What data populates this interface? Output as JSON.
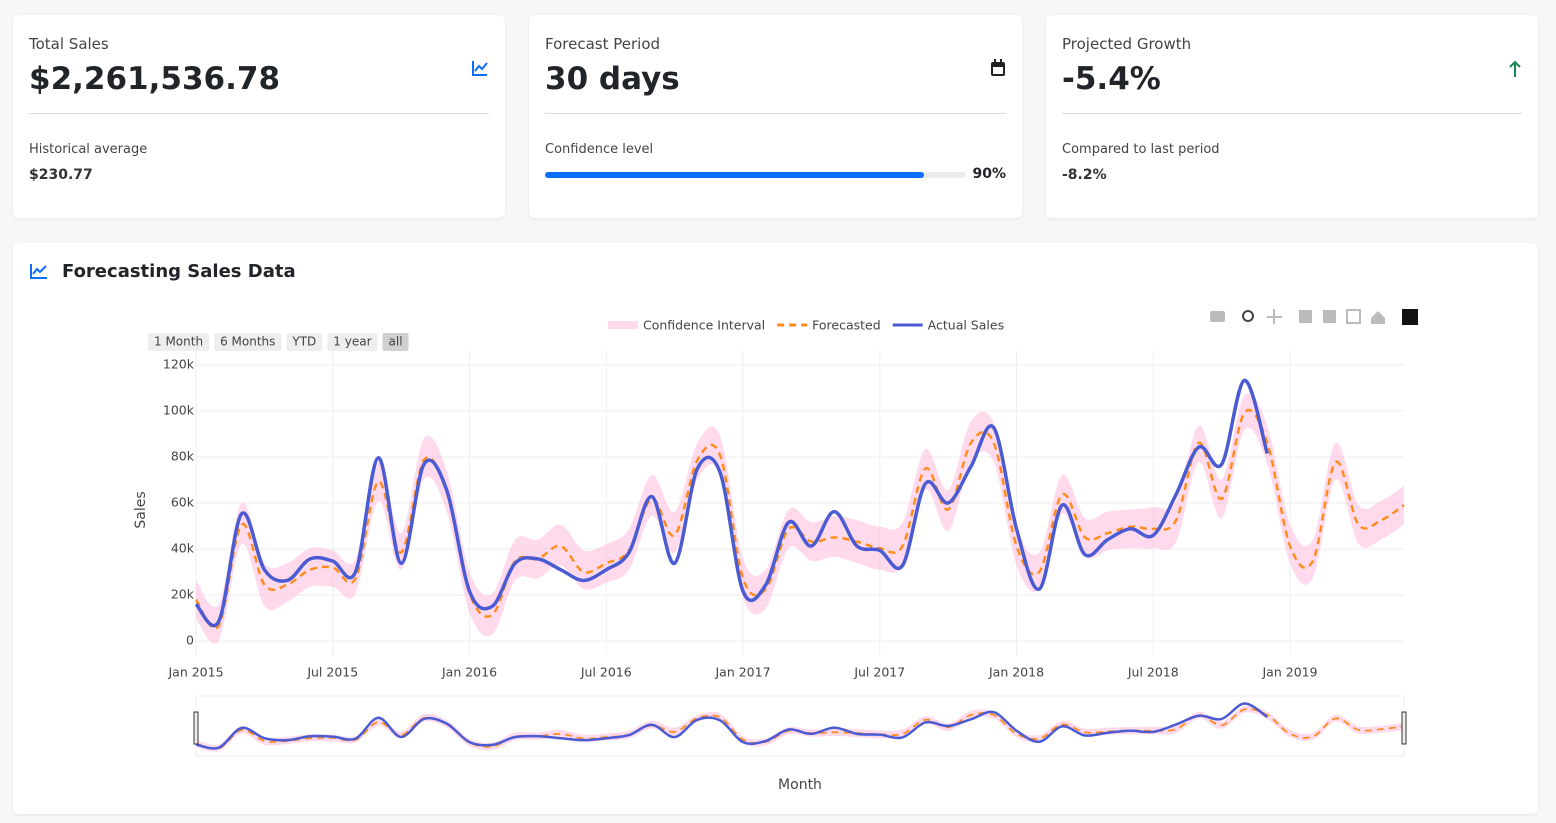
{
  "cards": [
    {
      "title": "Total Sales",
      "value": "$2,261,536.78",
      "subtitle": "Historical average",
      "subvalue": "$230.77"
    },
    {
      "title": "Forecast Period",
      "value": "30 days",
      "subtitle": "Confidence level",
      "progress": {
        "value": 90,
        "label": "90%"
      }
    },
    {
      "title": "Projected Growth",
      "value": "-5.4%",
      "subtitle": "Compared to last period",
      "subvalue": "-8.2%"
    }
  ],
  "panel_title": "Forecasting Sales Data",
  "chart_data": {
    "type": "line",
    "x_label": "Month",
    "y_label": "Sales",
    "range_buttons": [
      "1 Month",
      "6 Months",
      "YTD",
      "1 year",
      "all"
    ],
    "x": [
      "2015-01",
      "2015-02",
      "2015-03",
      "2015-04",
      "2015-05",
      "2015-06",
      "2015-07",
      "2015-08",
      "2015-09",
      "2015-10",
      "2015-11",
      "2015-12",
      "2016-01",
      "2016-02",
      "2016-03",
      "2016-04",
      "2016-05",
      "2016-06",
      "2016-07",
      "2016-08",
      "2016-09",
      "2016-10",
      "2016-11",
      "2016-12",
      "2017-01",
      "2017-02",
      "2017-03",
      "2017-04",
      "2017-05",
      "2017-06",
      "2017-07",
      "2017-08",
      "2017-09",
      "2017-10",
      "2017-11",
      "2017-12",
      "2018-01",
      "2018-02",
      "2018-03",
      "2018-04",
      "2018-05",
      "2018-06",
      "2018-07",
      "2018-08",
      "2018-09",
      "2018-10",
      "2018-11",
      "2018-12",
      "2019-01",
      "2019-02",
      "2019-03",
      "2019-04",
      "2019-05",
      "2019-06"
    ],
    "series": [
      {
        "name": "Confidence Interval",
        "color": "rgba(255,182,217,0.5)",
        "upper": [
          24000,
          13000,
          60000,
          32000,
          32000,
          39000,
          38000,
          34000,
          79000,
          46000,
          90000,
          75000,
          28000,
          18000,
          43000,
          43000,
          50000,
          38000,
          41000,
          48000,
          73000,
          56000,
          88000,
          91000,
          34000,
          29000,
          57000,
          51000,
          54000,
          52000,
          49000,
          51000,
          85000,
          66000,
          98000,
          97000,
          49000,
          37000,
          73000,
          53000,
          56000,
          57000,
          58000,
          61000,
          96000,
          71000,
          110000,
          96000,
          50000,
          43000,
          88000,
          59000,
          61000,
          68000
        ],
        "lower": [
          6000,
          -4000,
          41000,
          12000,
          14000,
          21000,
          21000,
          18000,
          61000,
          29000,
          71000,
          56000,
          9000,
          -1000,
          24000,
          25000,
          31000,
          20000,
          23000,
          29000,
          54000,
          37000,
          71000,
          73000,
          16000,
          11000,
          39000,
          33000,
          35000,
          32000,
          29000,
          31000,
          66000,
          47000,
          79000,
          79000,
          31000,
          20000,
          55000,
          35000,
          38000,
          39000,
          39000,
          42000,
          79000,
          53000,
          94000,
          78000,
          32000,
          25000,
          71000,
          41000,
          43000,
          50000
        ]
      },
      {
        "name": "Forecasted",
        "color": "#ff8c1a",
        "values": [
          15000,
          3000,
          50000,
          22000,
          22000,
          29000,
          30000,
          25000,
          70000,
          37000,
          80000,
          65000,
          18000,
          8000,
          33000,
          34000,
          40000,
          28000,
          32000,
          38000,
          62000,
          45000,
          80000,
          82000,
          25000,
          20000,
          48000,
          42000,
          44000,
          42000,
          39000,
          40000,
          76000,
          57000,
          88000,
          88000,
          40000,
          28000,
          64000,
          44000,
          46000,
          49000,
          48000,
          52000,
          88000,
          62000,
          102000,
          88000,
          40000,
          33000,
          79000,
          50000,
          52000,
          59000
        ]
      },
      {
        "name": "Actual Sales",
        "color": "#4a5bd4",
        "values": [
          13000,
          5000,
          55000,
          29000,
          24000,
          34000,
          33000,
          28000,
          81000,
          32000,
          78000,
          66000,
          19000,
          12000,
          32000,
          34000,
          29000,
          24000,
          29000,
          37000,
          63000,
          32000,
          76000,
          74000,
          19000,
          22000,
          51000,
          40000,
          56000,
          40000,
          38000,
          31000,
          69000,
          60000,
          77000,
          95000,
          48000,
          20000,
          59000,
          36000,
          43000,
          48000,
          45000,
          64000,
          86000,
          78000,
          117000,
          83000,
          null,
          null,
          null,
          null,
          null,
          null
        ]
      }
    ],
    "xlim": [
      "2015-01",
      "2019-06"
    ],
    "xticks": [
      {
        "value": "2015-01",
        "label": "Jan 2015"
      },
      {
        "value": "2015-07",
        "label": "Jul 2015"
      },
      {
        "value": "2016-01",
        "label": "Jan 2016"
      },
      {
        "value": "2016-07",
        "label": "Jul 2016"
      },
      {
        "value": "2017-01",
        "label": "Jan 2017"
      },
      {
        "value": "2017-07",
        "label": "Jul 2017"
      },
      {
        "value": "2018-01",
        "label": "Jan 2018"
      },
      {
        "value": "2018-07",
        "label": "Jul 2018"
      },
      {
        "value": "2019-01",
        "label": "Jan 2019"
      }
    ],
    "ylim": [
      -6000,
      126000
    ],
    "yticks": [
      0,
      {
        "value": 20000,
        "label": "20k"
      },
      {
        "value": 40000,
        "label": "40k"
      },
      {
        "value": 60000,
        "label": "60k"
      },
      {
        "value": 80000,
        "label": "80k"
      },
      {
        "value": 100000,
        "label": "100k"
      },
      {
        "value": 120000,
        "label": "120k"
      }
    ],
    "grid": true
  }
}
